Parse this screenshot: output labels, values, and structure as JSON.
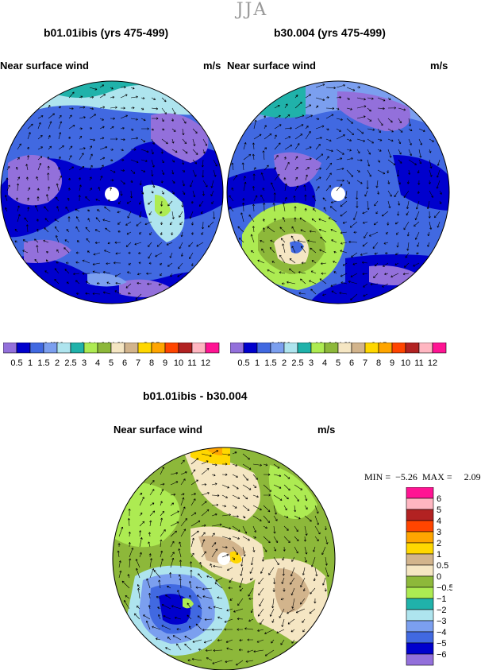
{
  "season_title": "JJA",
  "panel_left": {
    "title": "b01.01ibis (yrs 475-499)",
    "variable": "Near surface wind",
    "units": "m/s",
    "min_label": "MIN =",
    "min_value": "0.01",
    "max_label": "MAX =",
    "max_value": "3.35"
  },
  "panel_right": {
    "title": "b30.004 (yrs 475-499)",
    "variable": "Near surface wind",
    "units": "m/s",
    "min_label": "MIN =",
    "min_value": "0.02",
    "max_label": "MAX =",
    "max_value": "6.15"
  },
  "panel_diff": {
    "title": "b01.01ibis - b30.004",
    "variable": "Near surface wind",
    "units": "m/s",
    "min_label": "MIN =",
    "min_value": "−5.26",
    "max_label": "MAX =",
    "max_value": "2.09"
  },
  "abs_colorbar": {
    "colors": [
      "#9370DB",
      "#0000CD",
      "#4169E1",
      "#7B9FEF",
      "#AEE4EE",
      "#20B2AA",
      "#ADEB52",
      "#8DB83A",
      "#F5E6C3",
      "#D2B48C",
      "#FFD700",
      "#FFA500",
      "#FF4500",
      "#B22222",
      "#FFB6C1",
      "#FF1493"
    ],
    "labels": [
      "0.5",
      "1",
      "1.5",
      "2",
      "2.5",
      "3",
      "4",
      "5",
      "6",
      "7",
      "8",
      "9",
      "10",
      "11",
      "12"
    ]
  },
  "diff_colorbar": {
    "colors": [
      "#FF1493",
      "#FFB6C1",
      "#B22222",
      "#FF4500",
      "#FFA500",
      "#FFD700",
      "#D2B48C",
      "#F5E6C3",
      "#8DB83A",
      "#ADEB52",
      "#20B2AA",
      "#AEE4EE",
      "#7B9FEF",
      "#4169E1",
      "#0000CD",
      "#9370DB"
    ],
    "labels": [
      "6",
      "5",
      "4",
      "3",
      "2",
      "1",
      "0.5",
      "0",
      "−0.5",
      "−1",
      "−2",
      "−3",
      "−4",
      "−5",
      "−6"
    ]
  }
}
